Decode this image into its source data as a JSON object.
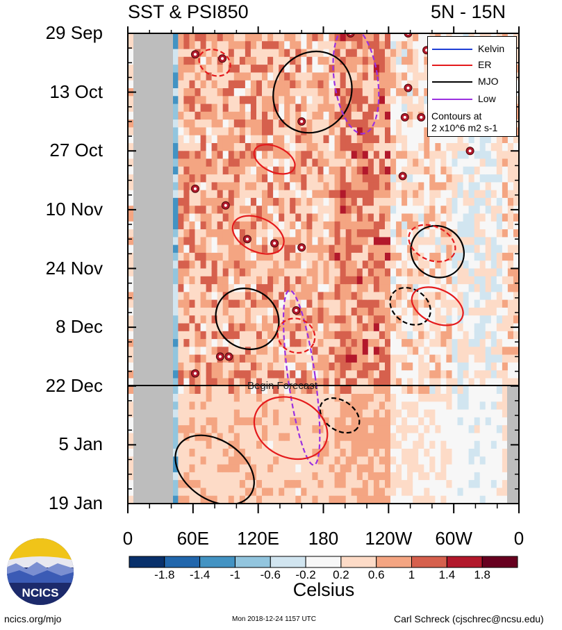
{
  "title_left": "SST & PSI850",
  "title_right": "5N - 15N",
  "forecast_label": "Begin Forecast",
  "legend": {
    "items": [
      {
        "label": "Kelvin",
        "color": "#1f3fd6"
      },
      {
        "label": "ER",
        "color": "#e41a1c"
      },
      {
        "label": "MJO",
        "color": "#000000"
      },
      {
        "label": "Low",
        "color": "#9b30e0"
      }
    ],
    "note_line1": "Contours at",
    "note_line2": "2 x10^6 m2 s-1"
  },
  "colorbar": {
    "label": "Celsius",
    "ticks": [
      "-1.8",
      "-1.4",
      "-1",
      "-0.6",
      "-0.2",
      "0.2",
      "0.6",
      "1",
      "1.4",
      "1.8"
    ],
    "colors": [
      "#08306b",
      "#2166ac",
      "#4393c3",
      "#92c5de",
      "#d1e5f0",
      "#f7f7f7",
      "#fddbc7",
      "#f4a582",
      "#d6604d",
      "#b2182b",
      "#67001f"
    ]
  },
  "logo_text": "NCICS",
  "footer": {
    "left": "ncics.org/mjo",
    "mid": "Mon 2018-12-24 1157 UTC",
    "right": "Carl Schreck (cjschrec@ncsu.edu)"
  },
  "chart_data": {
    "type": "heatmap",
    "xlabel": "",
    "ylabel": "",
    "x_ticks": [
      "0",
      "60E",
      "120E",
      "180",
      "120W",
      "60W",
      "0"
    ],
    "x_range_deg_east": [
      0,
      360
    ],
    "y_ticks": [
      "29 Sep",
      "13 Oct",
      "27 Oct",
      "10 Nov",
      "24 Nov",
      "8 Dec",
      "22 Dec",
      "5 Jan",
      "19 Jan"
    ],
    "y_range": [
      "2018-09-29",
      "2019-01-19"
    ],
    "forecast_start": "2018-12-22",
    "color_scale": {
      "min": -2.0,
      "max": 2.0,
      "units": "Celsius"
    },
    "contours": [
      {
        "type": "MJO",
        "color": "#000000",
        "style": "solid",
        "lon_center": 170,
        "date": "2018-10-13",
        "lon_span": 70,
        "day_span": 20
      },
      {
        "type": "MJO",
        "color": "#000000",
        "style": "solid",
        "lon_center": 110,
        "date": "2018-12-06",
        "lon_span": 60,
        "day_span": 14
      },
      {
        "type": "MJO",
        "color": "#000000",
        "style": "solid",
        "lon_center": 285,
        "date": "2018-11-20",
        "lon_span": 50,
        "day_span": 12
      },
      {
        "type": "MJO",
        "color": "#000000",
        "style": "solid",
        "lon_center": 80,
        "date": "2019-01-11",
        "lon_span": 80,
        "day_span": 14
      },
      {
        "type": "MJO",
        "color": "#000000",
        "style": "dashed",
        "lon_center": 260,
        "date": "2018-12-03",
        "lon_span": 40,
        "day_span": 8
      },
      {
        "type": "MJO",
        "color": "#000000",
        "style": "dashed",
        "lon_center": 195,
        "date": "2018-12-29",
        "lon_span": 40,
        "day_span": 7
      },
      {
        "type": "Low",
        "color": "#9b30e0",
        "style": "dashed",
        "lon_center": 160,
        "date": "2018-12-20",
        "lon_span": 25,
        "day_span": 42
      },
      {
        "type": "Low",
        "color": "#9b30e0",
        "style": "dashed",
        "lon_center": 210,
        "date": "2018-10-10",
        "lon_span": 40,
        "day_span": 26
      },
      {
        "type": "ER",
        "color": "#e41a1c",
        "style": "solid",
        "lon_center": 135,
        "date": "2018-10-29",
        "lon_span": 40,
        "day_span": 6
      },
      {
        "type": "ER",
        "color": "#e41a1c",
        "style": "solid",
        "lon_center": 120,
        "date": "2018-11-16",
        "lon_span": 50,
        "day_span": 8
      },
      {
        "type": "ER",
        "color": "#e41a1c",
        "style": "solid",
        "lon_center": 285,
        "date": "2018-12-03",
        "lon_span": 50,
        "day_span": 8
      },
      {
        "type": "ER",
        "color": "#e41a1c",
        "style": "solid",
        "lon_center": 150,
        "date": "2019-01-01",
        "lon_span": 70,
        "day_span": 14
      },
      {
        "type": "ER",
        "color": "#e41a1c",
        "style": "dashed",
        "lon_center": 80,
        "date": "2018-10-06",
        "lon_span": 30,
        "day_span": 6
      },
      {
        "type": "ER",
        "color": "#e41a1c",
        "style": "dashed",
        "lon_center": 280,
        "date": "2018-11-18",
        "lon_span": 45,
        "day_span": 8
      },
      {
        "type": "ER",
        "color": "#e41a1c",
        "style": "dashed",
        "lon_center": 155,
        "date": "2018-12-10",
        "lon_span": 35,
        "day_span": 8
      }
    ],
    "tropical_cyclone_markers": [
      {
        "lon": 62,
        "date": "2018-10-04"
      },
      {
        "lon": 87,
        "date": "2018-10-05"
      },
      {
        "lon": 160,
        "date": "2018-10-20"
      },
      {
        "lon": 255,
        "date": "2018-10-19"
      },
      {
        "lon": 270,
        "date": "2018-10-19"
      },
      {
        "lon": 315,
        "date": "2018-10-27"
      },
      {
        "lon": 253,
        "date": "2018-11-02"
      },
      {
        "lon": 62,
        "date": "2018-11-05"
      },
      {
        "lon": 90,
        "date": "2018-11-09"
      },
      {
        "lon": 110,
        "date": "2018-11-17"
      },
      {
        "lon": 135,
        "date": "2018-11-18"
      },
      {
        "lon": 160,
        "date": "2018-11-19"
      },
      {
        "lon": 155,
        "date": "2018-12-04"
      },
      {
        "lon": 85,
        "date": "2018-12-15"
      },
      {
        "lon": 93,
        "date": "2018-12-15"
      },
      {
        "lon": 62,
        "date": "2018-12-19"
      },
      {
        "lon": 205,
        "date": "2018-09-29"
      },
      {
        "lon": 258,
        "date": "2018-09-29"
      },
      {
        "lon": 275,
        "date": "2018-10-03"
      },
      {
        "lon": 258,
        "date": "2018-10-12"
      }
    ]
  }
}
